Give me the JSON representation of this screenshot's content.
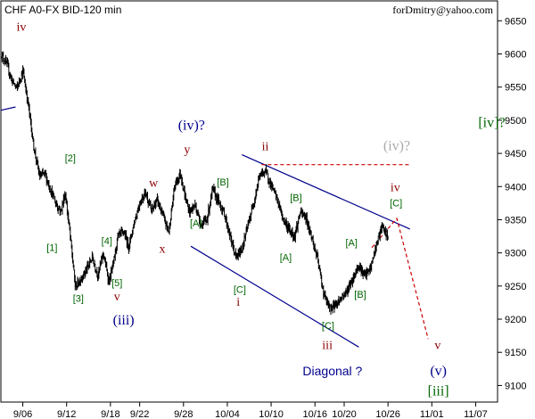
{
  "chart_data": {
    "type": "bar",
    "title": "CHF A0-FX BID-120 min",
    "author": "forDmitry@yahoo.com",
    "ylim": [
      9075,
      9680
    ],
    "y_ticks": [
      9100,
      9150,
      9200,
      9250,
      9300,
      9350,
      9400,
      9450,
      9500,
      9550,
      9600,
      9650
    ],
    "y_tick_labels": [
      "9100",
      "9150",
      "9200",
      "9250",
      "9300",
      "9350",
      "9400",
      "9450",
      "9500",
      "9550",
      "9600",
      "9650"
    ],
    "x_ticks": [
      "9/06",
      "9/12",
      "9/18",
      "9/22",
      "9/28",
      "10/04",
      "10/10",
      "10/16",
      "10/20",
      "10/26",
      "11/01",
      "11/07"
    ],
    "x_tick_days": [
      6,
      12,
      18,
      22,
      28,
      34,
      40,
      46,
      50,
      56,
      62,
      68
    ],
    "x_range_days": [
      3,
      71
    ],
    "x_day_note": "",
    "price_anchors": [
      [
        3.0,
        9600
      ],
      [
        3.8,
        9585
      ],
      [
        4.5,
        9560
      ],
      [
        5.2,
        9548
      ],
      [
        6.0,
        9575
      ],
      [
        6.8,
        9520
      ],
      [
        7.5,
        9460
      ],
      [
        8.3,
        9415
      ],
      [
        9.0,
        9420
      ],
      [
        9.8,
        9395
      ],
      [
        10.5,
        9375
      ],
      [
        11.2,
        9362
      ],
      [
        11.8,
        9390
      ],
      [
        12.4,
        9335
      ],
      [
        13.2,
        9248
      ],
      [
        14.0,
        9262
      ],
      [
        14.8,
        9276
      ],
      [
        15.5,
        9293
      ],
      [
        16.3,
        9266
      ],
      [
        17.0,
        9300
      ],
      [
        17.8,
        9256
      ],
      [
        18.4,
        9283
      ],
      [
        19.0,
        9324
      ],
      [
        19.8,
        9332
      ],
      [
        20.5,
        9310
      ],
      [
        21.2,
        9343
      ],
      [
        22.0,
        9375
      ],
      [
        22.8,
        9392
      ],
      [
        23.6,
        9363
      ],
      [
        24.4,
        9380
      ],
      [
        25.2,
        9355
      ],
      [
        26.0,
        9332
      ],
      [
        26.8,
        9402
      ],
      [
        27.6,
        9420
      ],
      [
        28.2,
        9385
      ],
      [
        28.8,
        9362
      ],
      [
        29.6,
        9372
      ],
      [
        30.4,
        9342
      ],
      [
        31.2,
        9350
      ],
      [
        32.0,
        9396
      ],
      [
        32.8,
        9377
      ],
      [
        33.6,
        9359
      ],
      [
        34.4,
        9324
      ],
      [
        35.2,
        9292
      ],
      [
        36.0,
        9306
      ],
      [
        36.8,
        9340
      ],
      [
        37.6,
        9375
      ],
      [
        38.4,
        9416
      ],
      [
        39.2,
        9424
      ],
      [
        40.0,
        9402
      ],
      [
        40.8,
        9382
      ],
      [
        41.6,
        9352
      ],
      [
        42.4,
        9336
      ],
      [
        43.2,
        9325
      ],
      [
        44.0,
        9361
      ],
      [
        44.8,
        9352
      ],
      [
        45.6,
        9322
      ],
      [
        46.4,
        9288
      ],
      [
        47.2,
        9238
      ],
      [
        48.0,
        9216
      ],
      [
        48.8,
        9222
      ],
      [
        49.6,
        9232
      ],
      [
        50.4,
        9243
      ],
      [
        51.2,
        9261
      ],
      [
        52.0,
        9282
      ],
      [
        52.8,
        9265
      ],
      [
        53.6,
        9276
      ],
      [
        54.4,
        9311
      ],
      [
        55.2,
        9340
      ],
      [
        56.0,
        9322
      ]
    ],
    "trend_lines": [
      {
        "name": "upper-channel",
        "color": "#00008b",
        "dash": false,
        "points": [
          [
            36.0,
            9448
          ],
          [
            59.0,
            9336
          ]
        ]
      },
      {
        "name": "lower-channel",
        "color": "#00008b",
        "dash": false,
        "points": [
          [
            29.0,
            9310
          ],
          [
            52.0,
            9158
          ]
        ]
      },
      {
        "name": "top-of-wedge",
        "color": "#cc0000",
        "dash": true,
        "points": [
          [
            38.7,
            9433
          ],
          [
            59.0,
            9433
          ]
        ]
      },
      {
        "name": "projection",
        "color": "#cc0000",
        "dash": true,
        "points": [
          [
            53.8,
            9308
          ],
          [
            57.2,
            9352
          ],
          [
            61.5,
            9170
          ]
        ]
      },
      {
        "name": "start-marker",
        "color": "#00008b",
        "dash": false,
        "points": [
          [
            3.0,
            9515
          ],
          [
            5.0,
            9520
          ]
        ]
      }
    ],
    "annotations": [
      {
        "text": "iv",
        "day": 5.8,
        "price": 9635,
        "color": "#8b0000",
        "size": 14,
        "serif": true
      },
      {
        "text": "[2]",
        "day": 12.5,
        "price": 9438,
        "color": "#006400",
        "size": 11,
        "serif": false
      },
      {
        "text": "[1]",
        "day": 10.0,
        "price": 9303,
        "color": "#006400",
        "size": 11,
        "serif": false
      },
      {
        "text": "[3]",
        "day": 13.6,
        "price": 9226,
        "color": "#006400",
        "size": 11,
        "serif": false
      },
      {
        "text": "[4]",
        "day": 17.5,
        "price": 9313,
        "color": "#006400",
        "size": 11,
        "serif": false
      },
      {
        "text": "[5]",
        "day": 18.9,
        "price": 9250,
        "color": "#006400",
        "size": 11,
        "serif": false
      },
      {
        "text": "v",
        "day": 18.9,
        "price": 9228,
        "color": "#8b0000",
        "size": 14,
        "serif": true
      },
      {
        "text": "(iii)",
        "day": 19.8,
        "price": 9192,
        "color": "#00008b",
        "size": 16,
        "serif": true
      },
      {
        "text": "w",
        "day": 23.9,
        "price": 9400,
        "color": "#8b0000",
        "size": 14,
        "serif": true
      },
      {
        "text": "x",
        "day": 25.1,
        "price": 9300,
        "color": "#8b0000",
        "size": 14,
        "serif": true
      },
      {
        "text": "(iv)?",
        "day": 29.1,
        "price": 9486,
        "color": "#00008b",
        "size": 16,
        "serif": true
      },
      {
        "text": "y",
        "day": 28.5,
        "price": 9450,
        "color": "#8b0000",
        "size": 14,
        "serif": true
      },
      {
        "text": "[B]",
        "day": 33.4,
        "price": 9402,
        "color": "#006400",
        "size": 11,
        "serif": false
      },
      {
        "text": "[A]",
        "day": 29.7,
        "price": 9340,
        "color": "#006400",
        "size": 11,
        "serif": false
      },
      {
        "text": "[C]",
        "day": 35.7,
        "price": 9240,
        "color": "#006400",
        "size": 11,
        "serif": false
      },
      {
        "text": "i",
        "day": 35.5,
        "price": 9220,
        "color": "#8b0000",
        "size": 14,
        "serif": true
      },
      {
        "text": "ii",
        "day": 39.2,
        "price": 9455,
        "color": "#8b0000",
        "size": 14,
        "serif": true
      },
      {
        "text": "[B]",
        "day": 43.4,
        "price": 9378,
        "color": "#006400",
        "size": 11,
        "serif": false
      },
      {
        "text": "[A]",
        "day": 42.0,
        "price": 9288,
        "color": "#006400",
        "size": 11,
        "serif": false
      },
      {
        "text": "[C]",
        "day": 47.8,
        "price": 9185,
        "color": "#006400",
        "size": 11,
        "serif": false
      },
      {
        "text": "iii",
        "day": 47.7,
        "price": 9155,
        "color": "#8b0000",
        "size": 14,
        "serif": true
      },
      {
        "text": "Diagonal ?",
        "day": 48.4,
        "price": 9115,
        "color": "#00008b",
        "size": 14,
        "serif": false
      },
      {
        "text": "[A]",
        "day": 51.0,
        "price": 9310,
        "color": "#006400",
        "size": 11,
        "serif": false
      },
      {
        "text": "[B]",
        "day": 52.2,
        "price": 9232,
        "color": "#006400",
        "size": 11,
        "serif": false
      },
      {
        "text": "(iv)?",
        "day": 57.2,
        "price": 9455,
        "color": "#aaaaaa",
        "size": 16,
        "serif": true
      },
      {
        "text": "iv",
        "day": 57.0,
        "price": 9393,
        "color": "#8b0000",
        "size": 14,
        "serif": true
      },
      {
        "text": "[C]",
        "day": 57.1,
        "price": 9370,
        "color": "#006400",
        "size": 11,
        "serif": false
      },
      {
        "text": "[iv]?",
        "day": 70.2,
        "price": 9490,
        "color": "#006400",
        "size": 16,
        "serif": true
      },
      {
        "text": "v",
        "day": 62.8,
        "price": 9155,
        "color": "#8b0000",
        "size": 14,
        "serif": true
      },
      {
        "text": "(v)",
        "day": 62.9,
        "price": 9115,
        "color": "#00008b",
        "size": 16,
        "serif": true
      },
      {
        "text": "[iii]",
        "day": 62.9,
        "price": 9085,
        "color": "#006400",
        "size": 16,
        "serif": true
      }
    ]
  }
}
